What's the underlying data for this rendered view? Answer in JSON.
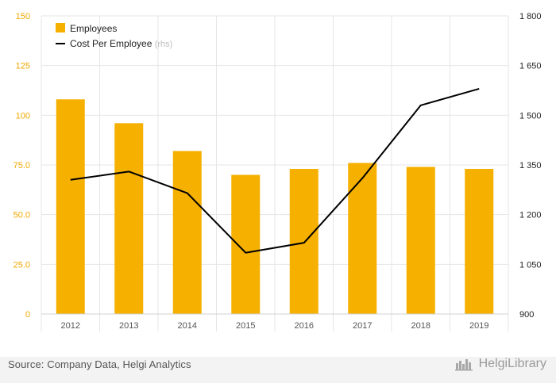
{
  "colors": {
    "bar": "#f5b000",
    "line": "#000000",
    "left_axis_text": "#f0a800",
    "right_axis_text": "#222222",
    "x_tick_text": "#555555",
    "grid": "#e6e6e6",
    "rhs_note": "#bdbdbd"
  },
  "chart_data": {
    "type": "bar",
    "title": "",
    "categories": [
      "2012",
      "2013",
      "2014",
      "2015",
      "2016",
      "2017",
      "2018",
      "2019"
    ],
    "series": [
      {
        "name": "Employees",
        "type": "bar",
        "axis": "left",
        "values": [
          108,
          96,
          82,
          70,
          73,
          76,
          74,
          73
        ]
      },
      {
        "name": "Cost Per Employee",
        "type": "line",
        "axis": "right",
        "note": "(rhs)",
        "values": [
          1305,
          1330,
          1265,
          1085,
          1115,
          1310,
          1530,
          1580
        ]
      }
    ],
    "y_left": {
      "ylim": [
        0,
        150
      ],
      "ticks": [
        0,
        25,
        50,
        75,
        100,
        125,
        150
      ],
      "tick_labels": [
        "0",
        "25.0",
        "50.0",
        "75.0",
        "100",
        "125",
        "150"
      ]
    },
    "y_right": {
      "ylim": [
        900,
        1800
      ],
      "ticks": [
        900,
        1050,
        1200,
        1350,
        1500,
        1650,
        1800
      ],
      "tick_labels": [
        "900",
        "1 050",
        "1 200",
        "1 350",
        "1 500",
        "1 650",
        "1 800"
      ]
    },
    "grid": true,
    "legend": "top-left"
  },
  "footer": {
    "source": "Source: Company Data, Helgi Analytics",
    "logo_text": "HelgiLibrary"
  },
  "icons": {
    "logo": "helgi-library-logo-icon"
  }
}
